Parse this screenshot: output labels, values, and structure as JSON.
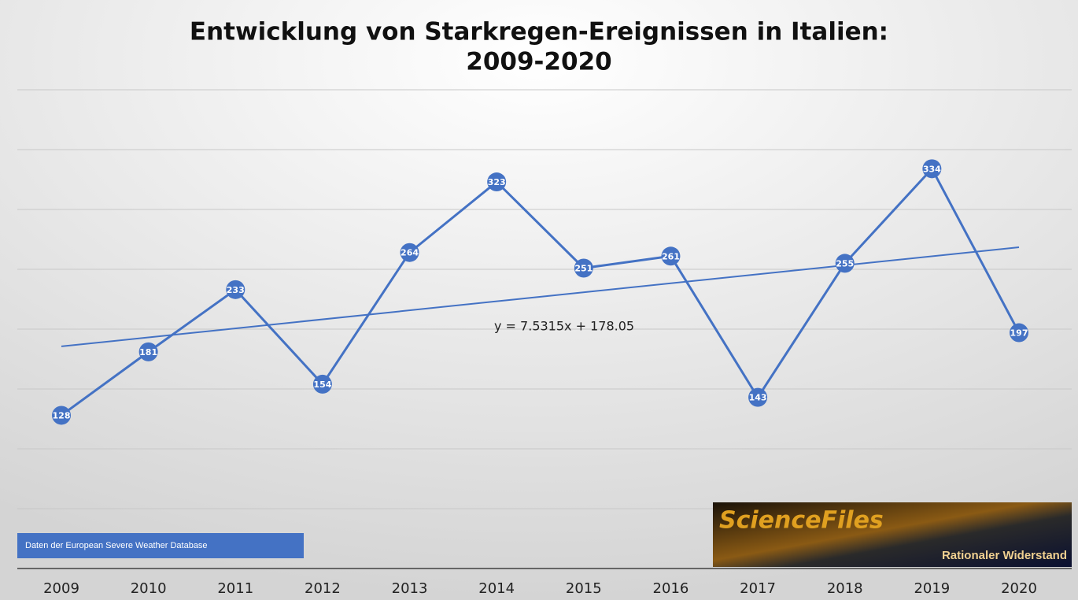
{
  "chart_data": {
    "type": "line",
    "title": [
      "Entwicklung von Starkregen-Ereignissen in Italien:",
      "2009-2020"
    ],
    "categories": [
      "2009",
      "2010",
      "2011",
      "2012",
      "2013",
      "2014",
      "2015",
      "2016",
      "2017",
      "2018",
      "2019",
      "2020"
    ],
    "series": [
      {
        "name": null,
        "color": "#4472c4",
        "values": [
          128,
          181,
          233,
          154,
          264,
          323,
          251,
          261,
          143,
          255,
          334,
          197
        ]
      }
    ],
    "ylim": [
      0,
      450
    ],
    "yticks": [
      0,
      50,
      100,
      150,
      200,
      250,
      300,
      350,
      400
    ],
    "grid": true,
    "trendline": {
      "label": "y = 7.5315x + 178.05",
      "slope": 7.5315,
      "intercept": 178.05
    },
    "source_note": "Daten der European Severe Weather Database",
    "logo": {
      "name": "ScienceFiles",
      "tagline": "Rationaler Widerstand"
    }
  }
}
